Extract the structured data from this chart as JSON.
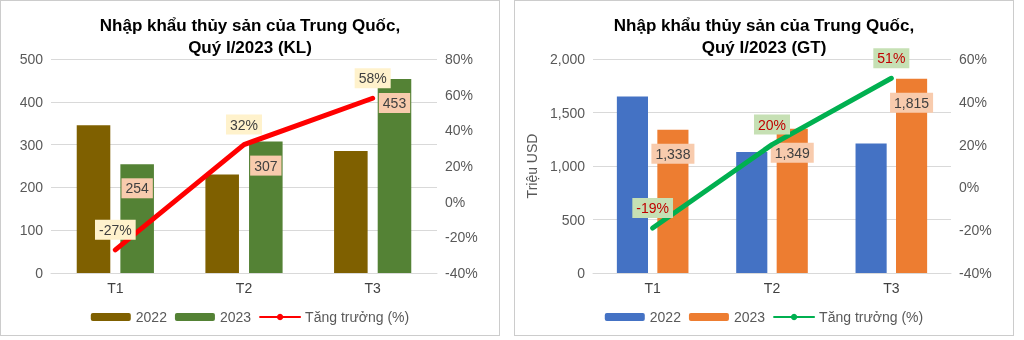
{
  "chart_data": [
    {
      "type": "bar",
      "title": "Nhập khẩu thủy sản của Trung Quốc,\nQuý I/2023 (KL)",
      "categories": [
        "T1",
        "T2",
        "T3"
      ],
      "series": [
        {
          "name": "2022",
          "color": "#7f6000",
          "values": [
            345,
            230,
            285
          ]
        },
        {
          "name": "2023",
          "color": "#548235",
          "values": [
            254,
            307,
            453
          ],
          "value_labels": [
            "254",
            "307",
            "453"
          ]
        },
        {
          "name": "Tăng trưởng (%)",
          "type": "line",
          "axis": "y2",
          "color": "#ff0000",
          "values": [
            -27,
            32,
            58
          ],
          "value_labels": [
            "-27%",
            "32%",
            "58%"
          ]
        }
      ],
      "ylim": [
        0,
        500
      ],
      "yticks": [
        0,
        100,
        200,
        300,
        400,
        500
      ],
      "y2lim": [
        -40,
        80
      ],
      "y2ticks": [
        {
          "value": -40,
          "label": "-40%"
        },
        {
          "value": -20,
          "label": "-20%"
        },
        {
          "value": 0,
          "label": "0%"
        },
        {
          "value": 20,
          "label": "20%"
        },
        {
          "value": 40,
          "label": "40%"
        },
        {
          "value": 60,
          "label": "60%"
        },
        {
          "value": 80,
          "label": "80%"
        }
      ],
      "grid": "y",
      "legend": "bottom",
      "marker": "none"
    },
    {
      "type": "bar",
      "title": "Nhập khẩu thủy sản của Trung Quốc,\nQuý I/2023 (GT)",
      "ylabel": "Triệu USD",
      "categories": [
        "T1",
        "T2",
        "T3"
      ],
      "series": [
        {
          "name": "2022",
          "color": "#4472c4",
          "values": [
            1650,
            1130,
            1210
          ]
        },
        {
          "name": "2023",
          "color": "#ed7d31",
          "values": [
            1338,
            1349,
            1815
          ],
          "value_labels": [
            "1,338",
            "1,349",
            "1,815"
          ]
        },
        {
          "name": "Tăng trưởng (%)",
          "type": "line",
          "axis": "y2",
          "color": "#00b050",
          "values": [
            -19,
            20,
            51
          ],
          "value_labels": [
            "-19%",
            "20%",
            "51%"
          ]
        }
      ],
      "ylim": [
        0,
        2000
      ],
      "yticks": [
        {
          "value": 0,
          "label": "0"
        },
        {
          "value": 500,
          "label": "500"
        },
        {
          "value": 1000,
          "label": "1,000"
        },
        {
          "value": 1500,
          "label": "1,500"
        },
        {
          "value": 2000,
          "label": "2,000"
        }
      ],
      "y2lim": [
        -40,
        60
      ],
      "y2ticks": [
        {
          "value": -40,
          "label": "-40%"
        },
        {
          "value": -20,
          "label": "-20%"
        },
        {
          "value": 0,
          "label": "0%"
        },
        {
          "value": 20,
          "label": "20%"
        },
        {
          "value": 40,
          "label": "40%"
        },
        {
          "value": 60,
          "label": "60%"
        }
      ],
      "grid": "y",
      "legend": "bottom",
      "marker": "none"
    }
  ]
}
